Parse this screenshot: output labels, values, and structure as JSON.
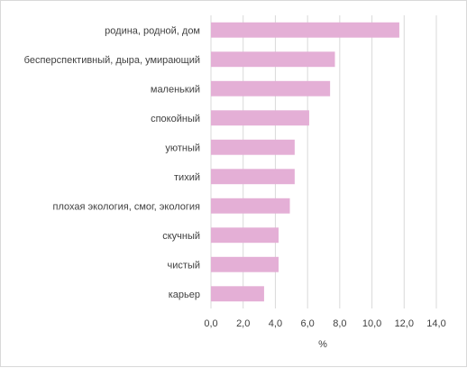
{
  "chart_data": {
    "type": "bar",
    "orientation": "horizontal",
    "categories": [
      "родина, родной, дом",
      "бесперспективный, дыра, умирающий",
      "маленький",
      "спокойный",
      "уютный",
      "тихий",
      "плохая экология, смог, экология",
      "скучный",
      "чистый",
      "карьер"
    ],
    "values": [
      11.7,
      7.7,
      7.4,
      6.1,
      5.2,
      5.2,
      4.9,
      4.2,
      4.2,
      3.3
    ],
    "xlabel": "%",
    "xlim": [
      0,
      14
    ],
    "xticks": [
      "0,0",
      "2,0",
      "4,0",
      "6,0",
      "8,0",
      "10,0",
      "12,0",
      "14,0"
    ],
    "grid": true,
    "bar_color": "#e4afd6",
    "grid_color": "#d9d9d9"
  }
}
